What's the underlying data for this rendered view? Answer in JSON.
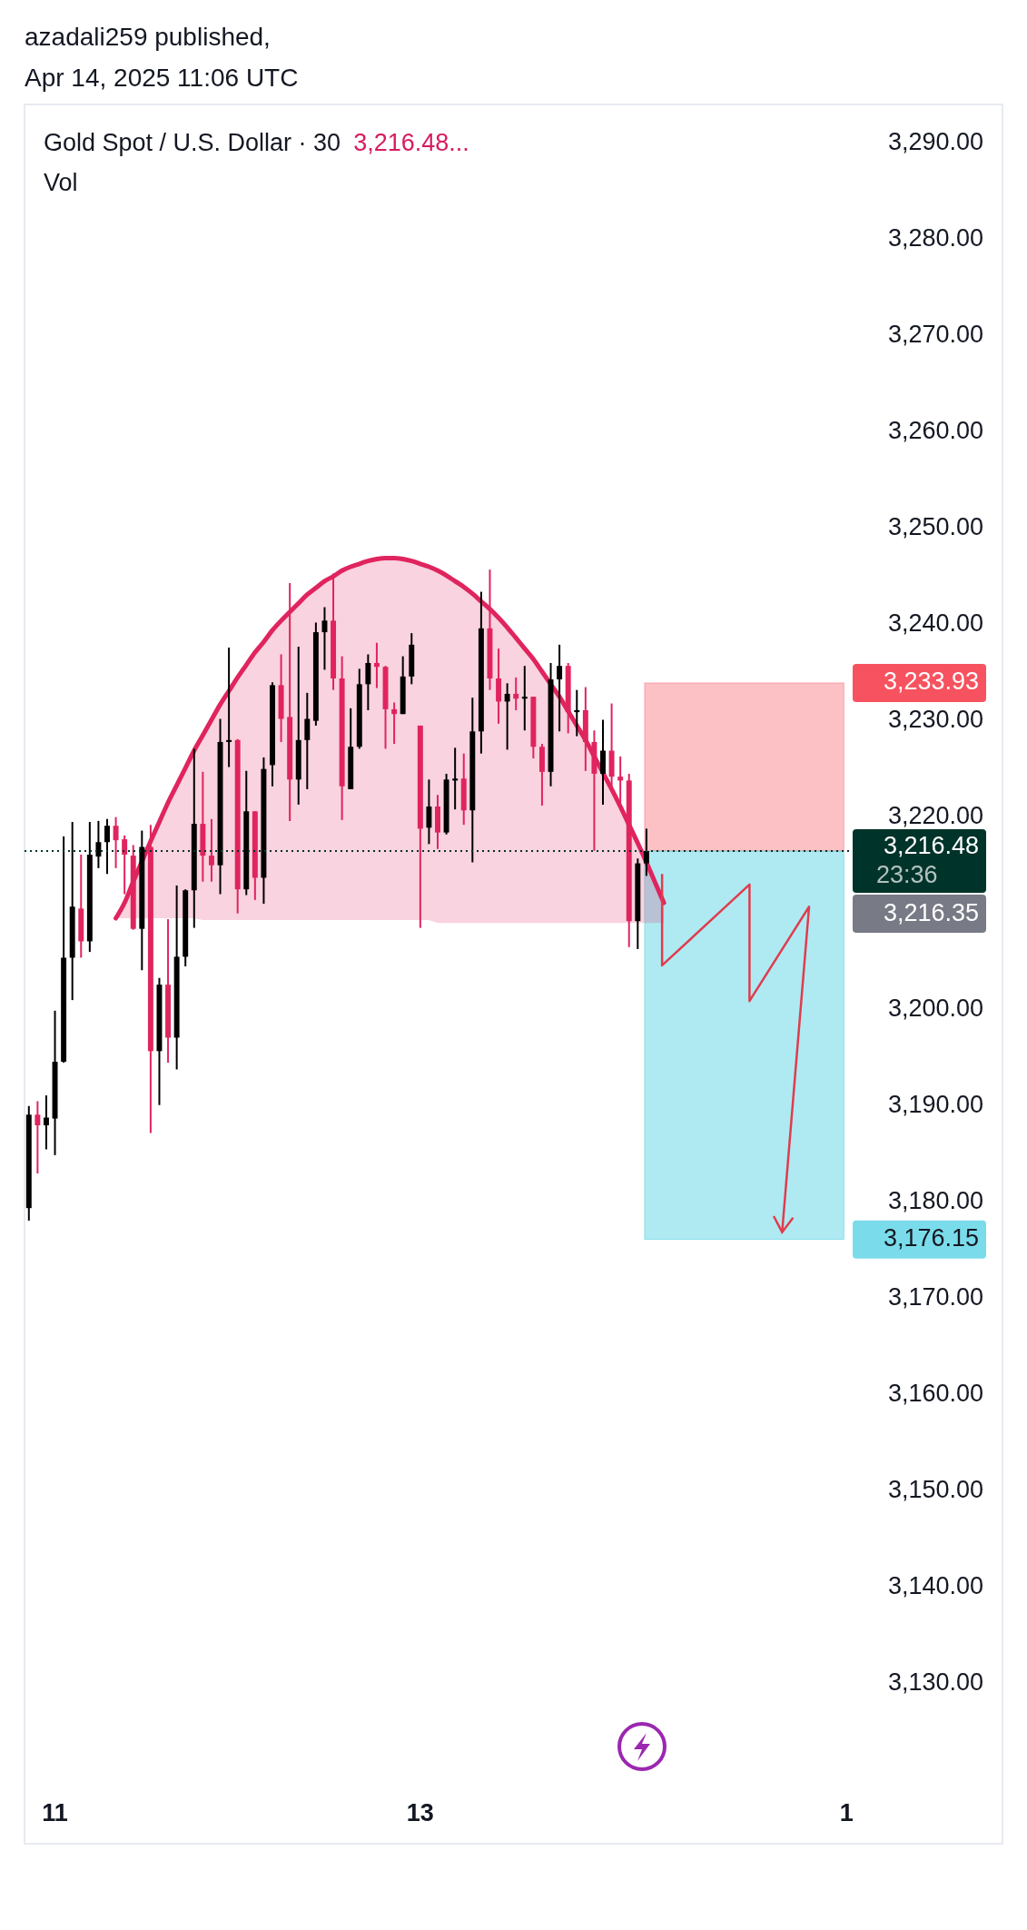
{
  "chart_data": {
    "type": "candlestick",
    "title": "Gold Spot / U.S. Dollar · 30",
    "annotations": [
      "azadali259 published,",
      "Apr 14, 2025 11:06 UTC",
      "3,216.48...",
      "Vol",
      "23:36",
      "3,216.35"
    ],
    "categories": [
      null,
      null,
      null,
      "11",
      null,
      null,
      null,
      null,
      null,
      null,
      null,
      null,
      null,
      null,
      null,
      null,
      null,
      null,
      null,
      null,
      null,
      null,
      null,
      null,
      null,
      null,
      null,
      null,
      null,
      null,
      null,
      null,
      null,
      null,
      null,
      null,
      null,
      null,
      null,
      null,
      null,
      null,
      null,
      null,
      null,
      "13",
      null,
      null,
      null,
      null,
      null,
      null,
      null,
      null,
      null,
      null,
      null,
      null,
      null,
      null,
      null,
      null,
      null,
      null,
      null,
      null,
      null,
      null,
      null,
      null,
      null,
      null,
      null,
      null,
      null,
      null,
      null,
      null,
      null,
      null,
      null,
      null,
      null,
      null,
      null,
      null,
      null,
      null,
      null,
      null,
      null,
      null,
      null,
      null,
      "1"
    ],
    "ohlc": [
      [
        3179.4,
        3190.0,
        3178.1,
        3189.1
      ],
      [
        3189.1,
        3190.5,
        3183.0,
        3188.0
      ],
      [
        3188.0,
        3191.1,
        3185.5,
        3188.8
      ],
      [
        3188.7,
        3199.9,
        3184.9,
        3194.6
      ],
      [
        3194.6,
        3218.0,
        3194.5,
        3205.4
      ],
      [
        3205.4,
        3219.5,
        3201.0,
        3210.7
      ],
      [
        3210.5,
        3216.1,
        3205.4,
        3207.1
      ],
      [
        3207.1,
        3219.5,
        3206.0,
        3216.1
      ],
      [
        3215.9,
        3219.6,
        3214.7,
        3217.4
      ],
      [
        3217.4,
        3219.8,
        3214.1,
        3219.1
      ],
      [
        3219.1,
        3220.0,
        3214.7,
        3217.6
      ],
      [
        3217.7,
        3218.1,
        3212.0,
        3216.1
      ],
      [
        3216.0,
        3217.1,
        3208.3,
        3208.4
      ],
      [
        3208.4,
        3218.6,
        3204.1,
        3216.9
      ],
      [
        3216.9,
        3219.2,
        3187.2,
        3195.7
      ],
      [
        3195.7,
        3203.3,
        3190.1,
        3202.6
      ],
      [
        3202.6,
        3209.4,
        3194.5,
        3197.1
      ],
      [
        3197.1,
        3212.9,
        3193.8,
        3205.5
      ],
      [
        3205.5,
        3212.5,
        3204.5,
        3212.4
      ],
      [
        3212.4,
        3227.1,
        3208.5,
        3219.3
      ],
      [
        3219.3,
        3224.7,
        3213.3,
        3216.0
      ],
      [
        3216.0,
        3219.8,
        3213.3,
        3215.0
      ],
      [
        3215.0,
        3230.2,
        3212.0,
        3227.8
      ],
      [
        3227.8,
        3237.6,
        3225.2,
        3228.0
      ],
      [
        3228.0,
        3228.1,
        3210.0,
        3212.5
      ],
      [
        3212.5,
        3224.8,
        3211.9,
        3220.6
      ],
      [
        3220.6,
        3220.6,
        3211.4,
        3213.7
      ],
      [
        3213.7,
        3226.2,
        3211.0,
        3225.0
      ],
      [
        3225.4,
        3234.0,
        3223.2,
        3233.7
      ],
      [
        3233.7,
        3236.9,
        3227.8,
        3230.2
      ],
      [
        3230.4,
        3244.3,
        3219.6,
        3223.9
      ],
      [
        3223.9,
        3237.7,
        3221.3,
        3228.0
      ],
      [
        3228.0,
        3232.9,
        3222.9,
        3230.2
      ],
      [
        3230.0,
        3240.2,
        3229.5,
        3239.2
      ],
      [
        3239.2,
        3241.8,
        3235.3,
        3240.4
      ],
      [
        3240.4,
        3245.3,
        3233.2,
        3234.4
      ],
      [
        3234.4,
        3236.7,
        3219.7,
        3223.2
      ],
      [
        3222.9,
        3231.3,
        3222.9,
        3227.3
      ],
      [
        3227.3,
        3235.4,
        3227.1,
        3233.8
      ],
      [
        3233.8,
        3236.9,
        3231.1,
        3236.0
      ],
      [
        3236.0,
        3238.1,
        3233.4,
        3235.6
      ],
      [
        3235.6,
        3235.7,
        3227.1,
        3231.2
      ],
      [
        3231.2,
        3231.9,
        3227.6,
        3230.7
      ],
      [
        3230.7,
        3236.7,
        3230.7,
        3234.6
      ],
      [
        3234.6,
        3239.1,
        3233.8,
        3237.9
      ],
      [
        3229.5,
        3229.5,
        3208.5,
        3218.8
      ],
      [
        3218.9,
        3223.9,
        3217.2,
        3221.1
      ],
      [
        3221.1,
        3222.3,
        3216.7,
        3218.4
      ],
      [
        3218.4,
        3224.5,
        3218.2,
        3223.9
      ],
      [
        3223.8,
        3227.2,
        3220.8,
        3224.0
      ],
      [
        3224.0,
        3226.6,
        3219.2,
        3220.7
      ],
      [
        3220.7,
        3232.4,
        3215.3,
        3228.9
      ],
      [
        3228.9,
        3243.4,
        3226.6,
        3239.6
      ],
      [
        3239.6,
        3245.7,
        3233.2,
        3234.4
      ],
      [
        3234.4,
        3237.5,
        3229.7,
        3232.0
      ],
      [
        3232.0,
        3233.9,
        3227.0,
        3232.8
      ],
      [
        3232.8,
        3234.5,
        3231.1,
        3232.3
      ],
      [
        3232.3,
        3235.7,
        3229.0,
        3232.5
      ],
      [
        3232.5,
        3232.5,
        3226.1,
        3227.3
      ],
      [
        3227.3,
        3227.6,
        3221.2,
        3224.7
      ],
      [
        3224.7,
        3236.0,
        3223.2,
        3234.3
      ],
      [
        3234.3,
        3237.9,
        3228.9,
        3235.7
      ],
      [
        3235.7,
        3236.0,
        3228.7,
        3230.9
      ],
      [
        3230.9,
        3233.2,
        3228.4,
        3231.1
      ],
      [
        3231.1,
        3233.5,
        3224.8,
        3227.8
      ],
      [
        3227.8,
        3229.0,
        3216.5,
        3224.5
      ],
      [
        3224.5,
        3230.1,
        3221.3,
        3226.9
      ],
      [
        3226.9,
        3231.8,
        3222.8,
        3224.2
      ],
      [
        3224.2,
        3226.3,
        3220.7,
        3223.8
      ],
      [
        3223.8,
        3224.5,
        3206.5,
        3209.2
      ],
      [
        3209.2,
        3215.7,
        3206.3,
        3215.2
      ],
      [
        3215.2,
        3218.8,
        3213.9,
        3216.48
      ],
      null,
      null,
      null,
      null,
      null,
      null,
      null,
      null,
      null,
      null,
      null,
      null,
      null,
      null,
      null,
      null,
      null,
      null,
      null,
      null,
      null,
      null,
      null
    ],
    "ylim": [
      3113.4,
      3294
    ],
    "yticks": [
      {
        "value": 3130,
        "label": "3,130.00"
      },
      {
        "value": 3140,
        "label": "3,140.00"
      },
      {
        "value": 3150,
        "label": "3,150.00"
      },
      {
        "value": 3160,
        "label": "3,160.00"
      },
      {
        "value": 3170,
        "label": "3,170.00"
      },
      {
        "value": 3180,
        "label": "3,180.00"
      },
      {
        "value": 3190,
        "label": "3,190.00"
      },
      {
        "value": 3200,
        "label": "3,200.00"
      },
      {
        "value": 3220,
        "label": "3,220.00"
      },
      {
        "value": 3230,
        "label": "3,230.00"
      },
      {
        "value": 3240,
        "label": "3,240.00"
      },
      {
        "value": 3250,
        "label": "3,250.00"
      },
      {
        "value": 3260,
        "label": "3,260.00"
      },
      {
        "value": 3270,
        "label": "3,270.00"
      },
      {
        "value": 3280,
        "label": "3,280.00"
      },
      {
        "value": 3290,
        "label": "3,290.00"
      }
    ],
    "ref_lines": [
      {
        "axis": "y",
        "value": 3216.48,
        "label": "3,216.48",
        "color": "#00332a",
        "line_style": "dotted"
      }
    ],
    "bands": [
      {
        "axis": "y",
        "from": 3216.48,
        "to": 3233.93,
        "label": "3,233.93",
        "color": "#f7525f"
      },
      {
        "axis": "y",
        "from": 3216.48,
        "to": 3176.15,
        "label": "3,176.15",
        "color": "#22c5dc"
      }
    ],
    "series": [
      {
        "type": "line",
        "color": "#e0245e",
        "values": [
          null,
          null,
          null,
          null,
          null,
          null,
          null,
          null,
          null,
          null,
          3209.5,
          3211.1,
          3213.3,
          3215.4,
          3217.5,
          3219.5,
          3221.5,
          3223.3,
          3225.1,
          3226.9,
          3228.5,
          3230.1,
          3231.7,
          3233.1,
          3234.5,
          3235.8,
          3237.1,
          3238.2,
          3239.4,
          3240.4,
          3241.3,
          3242.2,
          3243.1,
          3243.8,
          3244.5,
          3245.0,
          3245.6,
          3246.0,
          3246.3,
          3246.6,
          3246.8,
          3246.9,
          3246.9,
          3246.8,
          3246.6,
          3246.3,
          3246.0,
          3245.6,
          3245.1,
          3244.5,
          3243.9,
          3243.2,
          3242.4,
          3241.6,
          3240.7,
          3239.7,
          3238.6,
          3237.5,
          3236.4,
          3235.1,
          3233.8,
          3232.5,
          3231.0,
          3229.5,
          3228.0,
          3226.3,
          3224.6,
          3222.9,
          3221.1,
          3219.2,
          3217.3,
          3215.3,
          3213.2,
          3211.1,
          null,
          null,
          null,
          null,
          null,
          null,
          null,
          null,
          null,
          null,
          null,
          null,
          null,
          null,
          null,
          null,
          null,
          null,
          null,
          null,
          null
        ],
        "lower": [
          null,
          null,
          null,
          null,
          null,
          null,
          null,
          null,
          null,
          null,
          3209.5,
          3209.5,
          3209.5,
          3209.5,
          3209.5,
          3209.5,
          3209.5,
          3209.5,
          3209.5,
          3209.5,
          3209.3,
          3209.3,
          3209.3,
          3209.3,
          3209.3,
          3209.3,
          3209.3,
          3209.3,
          3209.3,
          3209.3,
          3209.3,
          3209.3,
          3209.3,
          3209.3,
          3209.3,
          3209.3,
          3209.3,
          3209.3,
          3209.3,
          3209.3,
          3209.3,
          3209.3,
          3209.3,
          3209.3,
          3209.3,
          3209.3,
          3209.3,
          3209.0,
          3209.0,
          3209.0,
          3209.0,
          3209.0,
          3209.0,
          3209.0,
          3209.0,
          3209.0,
          3209.0,
          3209.0,
          3209.0,
          3209.0,
          3209.0,
          3209.0,
          3209.0,
          3209.0,
          3209.0,
          3209.0,
          3209.0,
          3209.0,
          3209.0,
          3209.0,
          3209.0,
          3209.0,
          3209.0,
          3209.0,
          null,
          null,
          null,
          null,
          null,
          null,
          null,
          null,
          null,
          null,
          null,
          null,
          null,
          null,
          null,
          null,
          null,
          null,
          null,
          null,
          null
        ],
        "upper": [
          null,
          null,
          null,
          null,
          null,
          null,
          null,
          null,
          null,
          null,
          3209.5,
          3211.1,
          3213.3,
          3215.4,
          3217.5,
          3219.5,
          3221.5,
          3223.3,
          3225.1,
          3226.9,
          3228.5,
          3230.1,
          3231.7,
          3233.1,
          3234.5,
          3235.8,
          3237.1,
          3238.2,
          3239.4,
          3240.4,
          3241.3,
          3242.2,
          3243.1,
          3243.8,
          3244.5,
          3245.0,
          3245.6,
          3246.0,
          3246.3,
          3246.6,
          3246.8,
          3246.9,
          3246.9,
          3246.8,
          3246.6,
          3246.3,
          3246.0,
          3245.6,
          3245.1,
          3244.5,
          3243.9,
          3243.2,
          3242.4,
          3241.6,
          3240.7,
          3239.7,
          3238.6,
          3237.5,
          3236.4,
          3235.1,
          3233.8,
          3232.5,
          3231.0,
          3229.5,
          3228.0,
          3226.3,
          3224.6,
          3222.9,
          3221.1,
          3219.2,
          3217.3,
          3215.3,
          3213.2,
          3211.1,
          null,
          null,
          null,
          null,
          null,
          null,
          null,
          null,
          null,
          null,
          null,
          null,
          null,
          null,
          null,
          null,
          null,
          null,
          null,
          null,
          null
        ]
      }
    ],
    "grid": false
  }
}
